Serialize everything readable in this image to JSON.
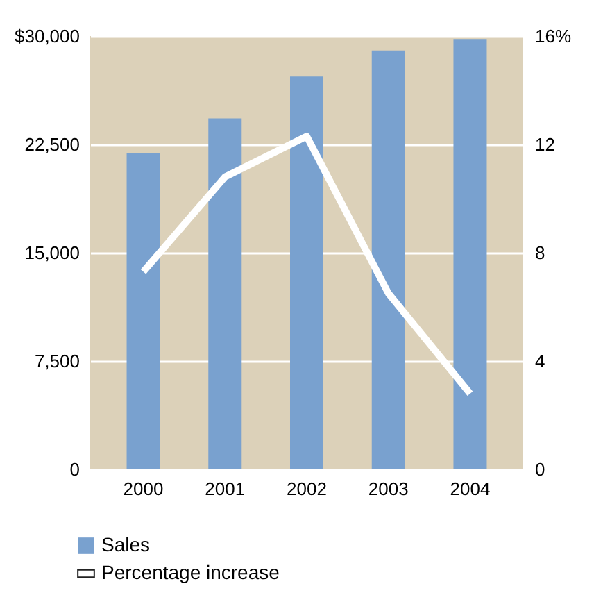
{
  "chart_data": {
    "type": "bar",
    "categories": [
      "2000",
      "2001",
      "2002",
      "2003",
      "2004"
    ],
    "series": [
      {
        "name": "Sales",
        "color": "#79a1cf",
        "values": [
          21900,
          24300,
          27200,
          29000,
          29800
        ]
      },
      {
        "name": "Percentage increase",
        "type": "line",
        "axis": "y2",
        "color": "#ffffff",
        "values": [
          7.3,
          10.8,
          12.3,
          6.5,
          2.8
        ]
      }
    ],
    "ylim": [
      0,
      30000
    ],
    "yticks": [
      0,
      {
        "value": 7500,
        "label": "7,500"
      },
      {
        "value": 15000,
        "label": "15,000"
      },
      {
        "value": 22500,
        "label": "22,500"
      },
      {
        "value": 30000,
        "label": "$30,000"
      }
    ],
    "y2lim": [
      0,
      16
    ],
    "y2ticks": [
      0,
      4,
      8,
      12,
      {
        "value": 16,
        "label": "16%"
      }
    ],
    "grid": "y",
    "legend": "bottom left",
    "line_style": "solid",
    "marker": "none"
  }
}
